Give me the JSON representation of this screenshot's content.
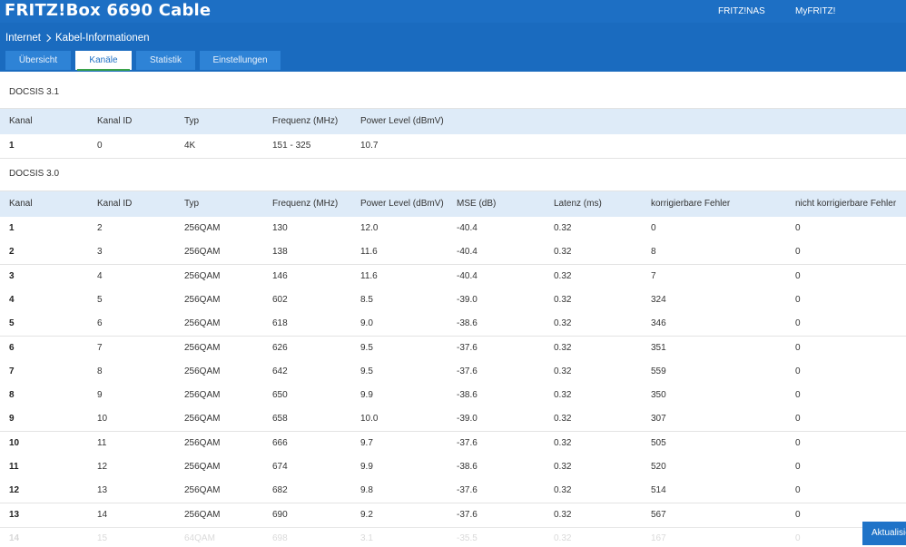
{
  "header": {
    "title": "FRITZ!Box 6690 Cable",
    "links": [
      "FRITZ!NAS",
      "MyFRITZ!"
    ]
  },
  "breadcrumb": {
    "parent": "Internet",
    "current": "Kabel-Informationen"
  },
  "tabs": [
    "Übersicht",
    "Kanäle",
    "Statistik",
    "Einstellungen"
  ],
  "active_tab": "Kanäle",
  "docsis31": {
    "label": "DOCSIS 3.1",
    "columns": [
      "Kanal",
      "Kanal ID",
      "Typ",
      "Frequenz (MHz)",
      "Power Level (dBmV)"
    ],
    "rows": [
      [
        "1",
        "0",
        "4K",
        "151 - 325",
        "10.7"
      ]
    ]
  },
  "docsis30": {
    "label": "DOCSIS 3.0",
    "columns": [
      "Kanal",
      "Kanal ID",
      "Typ",
      "Frequenz (MHz)",
      "Power Level (dBmV)",
      "MSE (dB)",
      "Latenz (ms)",
      "korrigierbare Fehler",
      "nicht korrigierbare Fehler"
    ],
    "rows": [
      [
        "1",
        "2",
        "256QAM",
        "130",
        "12.0",
        "-40.4",
        "0.32",
        "0",
        "0"
      ],
      [
        "2",
        "3",
        "256QAM",
        "138",
        "11.6",
        "-40.4",
        "0.32",
        "8",
        "0"
      ],
      [
        "3",
        "4",
        "256QAM",
        "146",
        "11.6",
        "-40.4",
        "0.32",
        "7",
        "0"
      ],
      [
        "4",
        "5",
        "256QAM",
        "602",
        "8.5",
        "-39.0",
        "0.32",
        "324",
        "0"
      ],
      [
        "5",
        "6",
        "256QAM",
        "618",
        "9.0",
        "-38.6",
        "0.32",
        "346",
        "0"
      ],
      [
        "6",
        "7",
        "256QAM",
        "626",
        "9.5",
        "-37.6",
        "0.32",
        "351",
        "0"
      ],
      [
        "7",
        "8",
        "256QAM",
        "642",
        "9.5",
        "-37.6",
        "0.32",
        "559",
        "0"
      ],
      [
        "8",
        "9",
        "256QAM",
        "650",
        "9.9",
        "-38.6",
        "0.32",
        "350",
        "0"
      ],
      [
        "9",
        "10",
        "256QAM",
        "658",
        "10.0",
        "-39.0",
        "0.32",
        "307",
        "0"
      ],
      [
        "10",
        "11",
        "256QAM",
        "666",
        "9.7",
        "-37.6",
        "0.32",
        "505",
        "0"
      ],
      [
        "11",
        "12",
        "256QAM",
        "674",
        "9.9",
        "-38.6",
        "0.32",
        "520",
        "0"
      ],
      [
        "12",
        "13",
        "256QAM",
        "682",
        "9.8",
        "-37.6",
        "0.32",
        "514",
        "0"
      ],
      [
        "13",
        "14",
        "256QAM",
        "690",
        "9.2",
        "-37.6",
        "0.32",
        "567",
        "0"
      ],
      [
        "14",
        "15",
        "64QAM",
        "698",
        "3.1",
        "-35.5",
        "0.32",
        "167",
        "0"
      ]
    ]
  },
  "refresh_button": "Aktualisieren",
  "colors": {
    "header": "#1d6fc4",
    "table_header": "#deebf8",
    "active_tab_underline": "#3aa34a"
  }
}
